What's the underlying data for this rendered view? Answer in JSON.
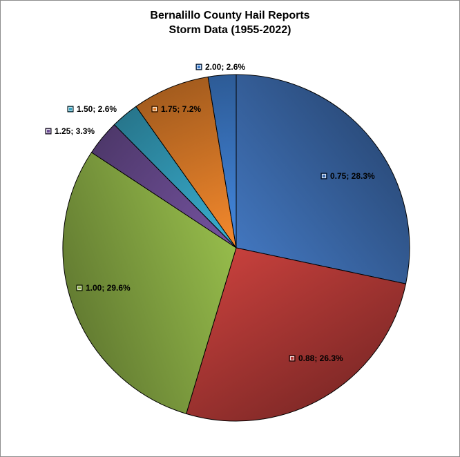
{
  "chart_data": {
    "type": "pie",
    "title": "Bernalillo County Hail Reports",
    "subtitle": "Storm Data (1955-2022)",
    "slices": [
      {
        "category": "0.75",
        "value": 28.3,
        "label": "0.75; 28.3%",
        "color": "#3d6db0"
      },
      {
        "category": "0.88",
        "value": 26.3,
        "label": "0.88; 26.3%",
        "color": "#b73b38"
      },
      {
        "category": "1.00",
        "value": 29.6,
        "label": "1.00; 29.6%",
        "color": "#8bae45"
      },
      {
        "category": "1.25",
        "value": 3.3,
        "label": "1.25; 3.3%",
        "color": "#6d4e95"
      },
      {
        "category": "1.50",
        "value": 2.6,
        "label": "1.50; 2.6%",
        "color": "#36a4c3"
      },
      {
        "category": "1.75",
        "value": 7.2,
        "label": "1.75; 7.2%",
        "color": "#e4802a"
      },
      {
        "category": "2.00",
        "value": 2.6,
        "label": "2.00; 2.6%",
        "color": "#3f7fd0"
      }
    ],
    "start_angle": "12 o'clock",
    "direction": "clockwise",
    "legend": "none",
    "data_labels": "with legend key"
  }
}
